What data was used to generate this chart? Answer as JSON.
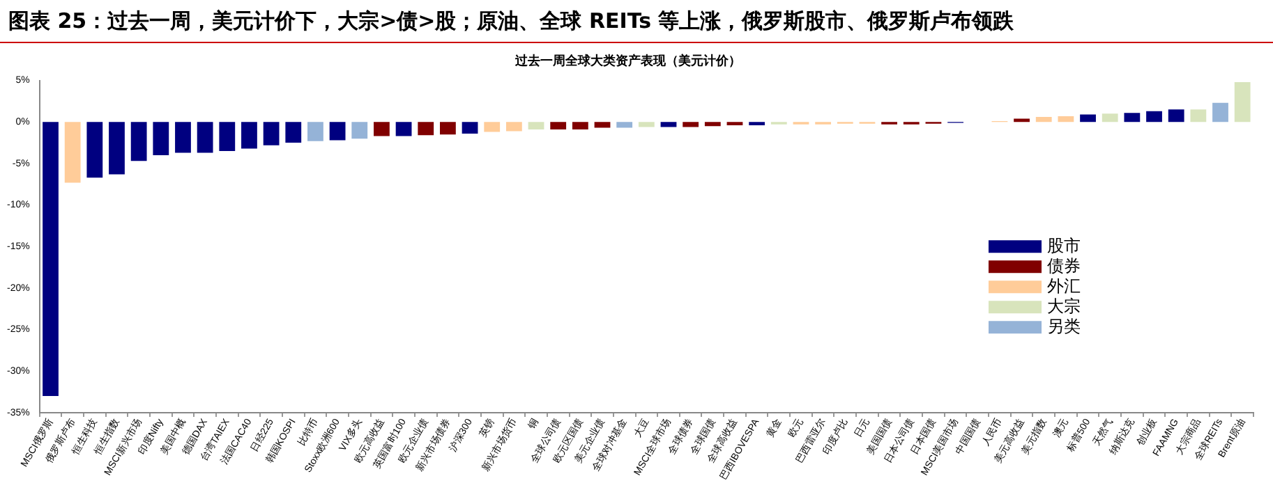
{
  "chart_data": {
    "type": "bar",
    "title": "图表 25：过去一周，美元计价下，大宗>债>股；原油、全球 REITs 等上涨，俄罗斯股市、俄罗斯卢布领跌",
    "subtitle": "过去一周全球大类资产表现（美元计价）",
    "categories": [
      "MSCI俄罗斯",
      "俄罗斯卢布",
      "恒生科技",
      "恒生指数",
      "MSCI新兴市场",
      "印度Nifty",
      "美国中概",
      "德国DAX",
      "台湾TAIEX",
      "法国CAC40",
      "日经225",
      "韩国KOSPI",
      "比特币",
      "Stoxx欧洲600",
      "VIX多头",
      "欧元高收益",
      "英国富时100",
      "欧元企业债",
      "新兴市场债券",
      "沪深300",
      "英镑",
      "新兴市场货币",
      "铜",
      "全球公司债",
      "欧元区国债",
      "美元企业债",
      "全球对冲基金",
      "大豆",
      "MSCI全球市场",
      "全球债券",
      "全球国债",
      "全球高收益",
      "巴西IBOVESPA",
      "黄金",
      "欧元",
      "巴西雷亚尔",
      "印度卢比",
      "日元",
      "美国国债",
      "日本公司债",
      "日本国债",
      "MSCI美国市场",
      "中国国债",
      "人民币",
      "美元高收益",
      "美元指数",
      "澳元",
      "标普500",
      "天然气",
      "纳斯达克",
      "创业板",
      "FAAMNG",
      "大宗商品",
      "全球REITs",
      "Brent原油"
    ],
    "series": [
      {
        "name": "股市",
        "color": "#000080",
        "values": [
          -33,
          null,
          -6.7,
          -6.3,
          -4.7,
          -4.0,
          -3.7,
          -3.7,
          -3.5,
          -3.2,
          -2.8,
          -2.5,
          null,
          -2.2,
          null,
          null,
          -1.7,
          null,
          null,
          -1.4,
          null,
          null,
          null,
          null,
          null,
          null,
          null,
          null,
          -0.6,
          null,
          null,
          null,
          -0.4,
          null,
          null,
          null,
          null,
          null,
          null,
          null,
          null,
          -0.1,
          null,
          null,
          null,
          null,
          null,
          0.9,
          null,
          1.1,
          1.3,
          1.5,
          null,
          null,
          null
        ]
      },
      {
        "name": "债券",
        "color": "#800000",
        "values": [
          null,
          null,
          null,
          null,
          null,
          null,
          null,
          null,
          null,
          null,
          null,
          null,
          null,
          null,
          null,
          -1.7,
          null,
          -1.6,
          -1.5,
          null,
          null,
          null,
          null,
          -0.9,
          -0.9,
          -0.7,
          null,
          null,
          null,
          -0.6,
          -0.5,
          -0.4,
          null,
          null,
          null,
          null,
          null,
          null,
          -0.3,
          -0.3,
          -0.2,
          null,
          0,
          null,
          0.4,
          null,
          null,
          null,
          null,
          null,
          null,
          null,
          null,
          null,
          null
        ]
      },
      {
        "name": "外汇",
        "color": "#ffcc99",
        "values": [
          null,
          -7.3,
          null,
          null,
          null,
          null,
          null,
          null,
          null,
          null,
          null,
          null,
          null,
          null,
          null,
          null,
          null,
          null,
          null,
          null,
          -1.2,
          -1.1,
          null,
          null,
          null,
          null,
          null,
          null,
          null,
          null,
          null,
          null,
          null,
          null,
          -0.3,
          -0.3,
          -0.2,
          -0.2,
          null,
          null,
          null,
          null,
          null,
          0.1,
          null,
          0.6,
          0.7,
          null,
          null,
          null,
          null,
          null,
          null,
          null,
          null
        ]
      },
      {
        "name": "大宗",
        "color": "#d8e4bc",
        "values": [
          null,
          null,
          null,
          null,
          null,
          null,
          null,
          null,
          null,
          null,
          null,
          null,
          null,
          null,
          null,
          null,
          null,
          null,
          null,
          null,
          null,
          null,
          -0.9,
          null,
          null,
          null,
          null,
          -0.6,
          null,
          null,
          null,
          null,
          null,
          -0.3,
          null,
          null,
          null,
          null,
          null,
          null,
          null,
          null,
          null,
          null,
          null,
          null,
          null,
          null,
          1.0,
          null,
          null,
          null,
          1.5,
          null,
          4.8
        ]
      },
      {
        "name": "另类",
        "color": "#95b3d7",
        "values": [
          null,
          null,
          null,
          null,
          null,
          null,
          null,
          null,
          null,
          null,
          null,
          null,
          -2.3,
          null,
          -2.0,
          null,
          null,
          null,
          null,
          null,
          null,
          null,
          null,
          null,
          null,
          null,
          -0.7,
          null,
          null,
          null,
          null,
          null,
          null,
          null,
          null,
          null,
          null,
          null,
          null,
          null,
          null,
          null,
          null,
          null,
          null,
          null,
          null,
          null,
          null,
          null,
          null,
          null,
          null,
          2.3,
          null
        ]
      }
    ],
    "stacked": true,
    "ylim": [
      -35,
      5
    ],
    "yticks": [
      {
        "value": 5,
        "label": "5%"
      },
      {
        "value": 0,
        "label": "0%"
      },
      {
        "value": -5,
        "label": "-5%"
      },
      {
        "value": -10,
        "label": "-10%"
      },
      {
        "value": -15,
        "label": "-15%"
      },
      {
        "value": -20,
        "label": "-20%"
      },
      {
        "value": -25,
        "label": "-25%"
      },
      {
        "value": -30,
        "label": "-30%"
      },
      {
        "value": -35,
        "label": "-35%"
      }
    ],
    "legend": "right"
  }
}
